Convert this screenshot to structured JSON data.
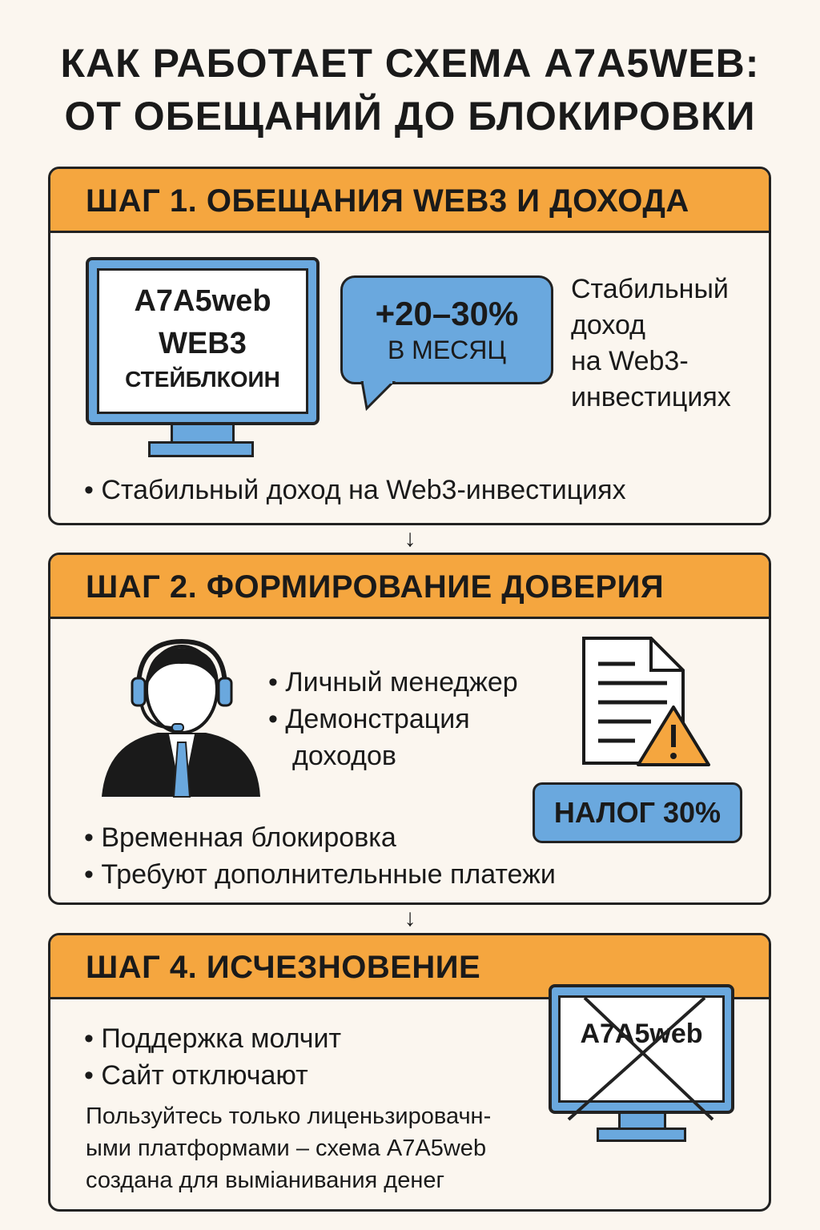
{
  "title": {
    "line1": "КАК РАБОТАЕТ СХЕМА A7A5WEB:",
    "line2": "ОТ ОБЕЩАНИЙ ДО БЛОКИРОВКИ"
  },
  "colors": {
    "background": "#fbf6ef",
    "header": "#f5a63f",
    "accent_blue": "#6aa8de",
    "outline": "#222222"
  },
  "step1": {
    "header": "ШАГ 1. ОБЕЩАНИЯ WEB3 И ДОХОДА",
    "monitor_lines": [
      "A7A5web",
      "WEB3",
      "СТЕЙБЛКОИН"
    ],
    "bubble": {
      "value": "+20–30%",
      "label": "В МЕСЯЦ"
    },
    "side_text": [
      "Стабильный",
      "доход",
      "на Web3-",
      "инвестициях"
    ],
    "bullets": [
      "Стабильный доход на Web3-инвестициях"
    ]
  },
  "arrow_icon": "arrow-down-icon",
  "step2": {
    "header": "ШАГ 2. ФОРМИРОВАНИЕ ДОВЕРИЯ",
    "manager_bullets": [
      "Личный менеджер",
      "Демонстрация доходов"
    ],
    "document_icon": "document-warning-icon",
    "tax_badge": "НАЛОГ 30%",
    "bullets": [
      "Временная блокировка",
      "Требуют дополнительнные платежи"
    ]
  },
  "step4": {
    "header": "ШАГ 4. ИСЧЕЗНОВЕНИЕ",
    "bullets": [
      "Поддержка молчит",
      "Сайт отключают"
    ],
    "warning": [
      "Пользуйтесь только лиценьзировачн-",
      "ыми платформами – схема A7A5web",
      "создана для выміанивания денег"
    ],
    "monitor_text": "A7A5web"
  }
}
